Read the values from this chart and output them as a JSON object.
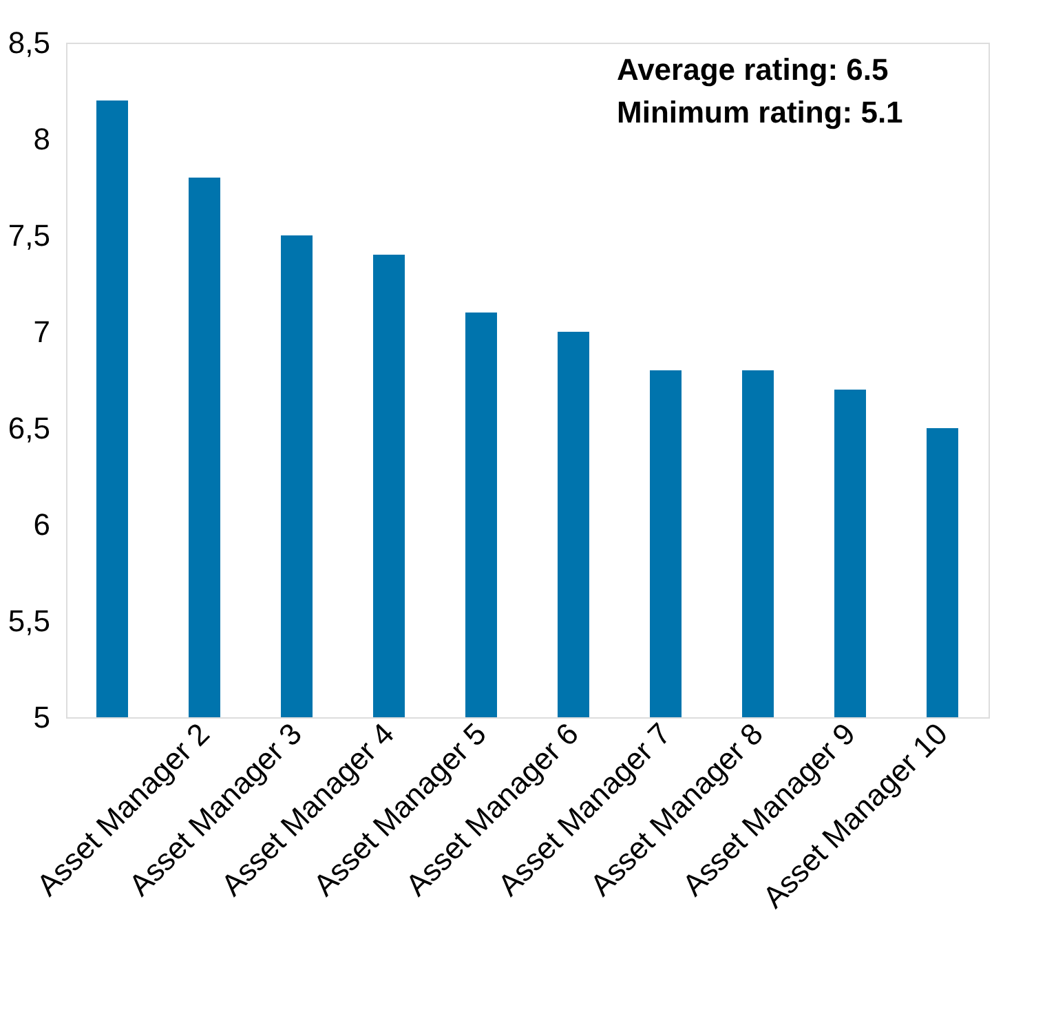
{
  "chart_data": {
    "type": "bar",
    "categories": [
      null,
      "Asset Manager 2",
      "Asset Manager 3",
      "Asset Manager 4",
      "Asset Manager 5",
      "Asset Manager 6",
      "Asset Manager 7",
      "Asset Manager 8",
      "Asset Manager 9",
      "Asset Manager 10"
    ],
    "values": [
      8.2,
      7.8,
      7.5,
      7.4,
      7.1,
      7.0,
      6.8,
      6.8,
      6.7,
      6.5
    ],
    "color": "#0074ad",
    "ylim": [
      5,
      8.5
    ],
    "yticks": [
      5,
      {
        "value": 5.5,
        "label": "5,5"
      },
      6,
      {
        "value": 6.5,
        "label": "6,5"
      },
      7,
      {
        "value": 7.5,
        "label": "7,5"
      },
      8,
      {
        "value": 8.5,
        "label": "8,5"
      }
    ],
    "grid": false,
    "annotations": [
      "Average rating: 6.5",
      "Minimum rating: 5.1"
    ]
  }
}
